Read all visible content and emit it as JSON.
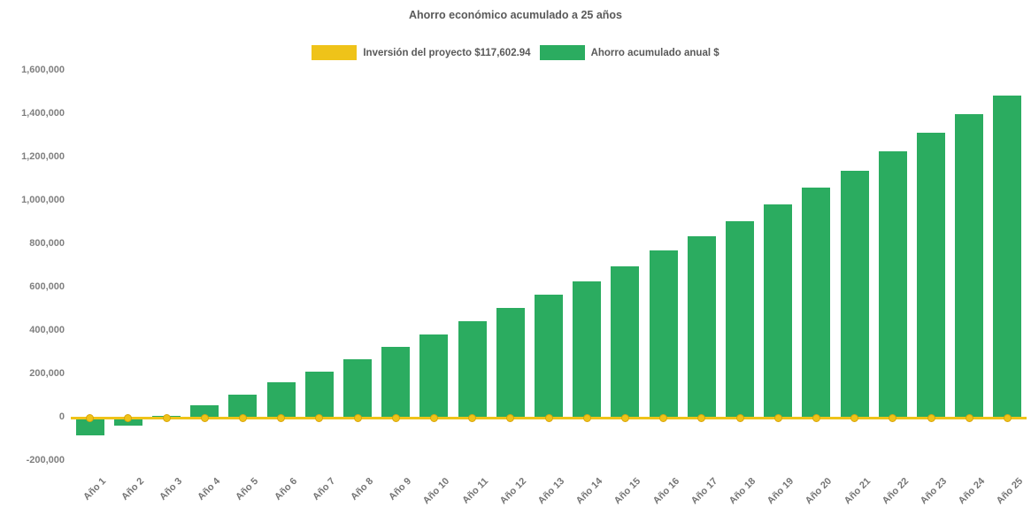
{
  "title": "Ahorro económico acumulado a 25 años",
  "legend": {
    "items": [
      {
        "label": "Inversión del proyecto $117,602.94",
        "color": "#EFC319"
      },
      {
        "label": "Ahorro acumulado anual $",
        "color": "#2BAC60"
      }
    ]
  },
  "colors": {
    "bar_green": "#2BAC60",
    "line_yellow": "#EFC319",
    "marker_border": "#D9A50A",
    "title_text": "#595959",
    "axis_text": "#7f7f7f",
    "background": "#ffffff"
  },
  "chart_data": {
    "type": "bar",
    "title": "Ahorro económico acumulado a 25 años",
    "categories": [
      "Año 1",
      "Año 2",
      "Año 3",
      "Año 4",
      "Año 5",
      "Año 6",
      "Año 7",
      "Año 8",
      "Año 9",
      "Año 10",
      "Año 11",
      "Año 12",
      "Año 13",
      "Año 14",
      "Año 15",
      "Año 16",
      "Año 17",
      "Año 18",
      "Año 19",
      "Año 20",
      "Año 21",
      "Año 22",
      "Año 23",
      "Año 24",
      "Año 25"
    ],
    "series": [
      {
        "name": "Ahorro acumulado anual $",
        "type": "bar",
        "color": "#2BAC60",
        "values": [
          -80000,
          -35000,
          10000,
          58000,
          108000,
          165000,
          212000,
          268000,
          325000,
          385000,
          443000,
          505000,
          567000,
          630000,
          700000,
          770000,
          837000,
          908000,
          985000,
          1062000,
          1140000,
          1227000,
          1313000,
          1398000,
          1486000
        ]
      },
      {
        "name": "Inversión del proyecto $117,602.94",
        "type": "line",
        "color": "#EFC319",
        "constant_value": 0
      }
    ],
    "xlabel": "",
    "ylabel": "",
    "ylim": [
      -200000,
      1600000
    ],
    "ytick_step": 200000,
    "ytick_labels": [
      "1,600,000",
      "1,400,000",
      "1,200,000",
      "1,000,000",
      "800,000",
      "600,000",
      "400,000",
      "200,000",
      "0",
      "-200,000"
    ],
    "grid": false,
    "legend_position": "top-center"
  }
}
